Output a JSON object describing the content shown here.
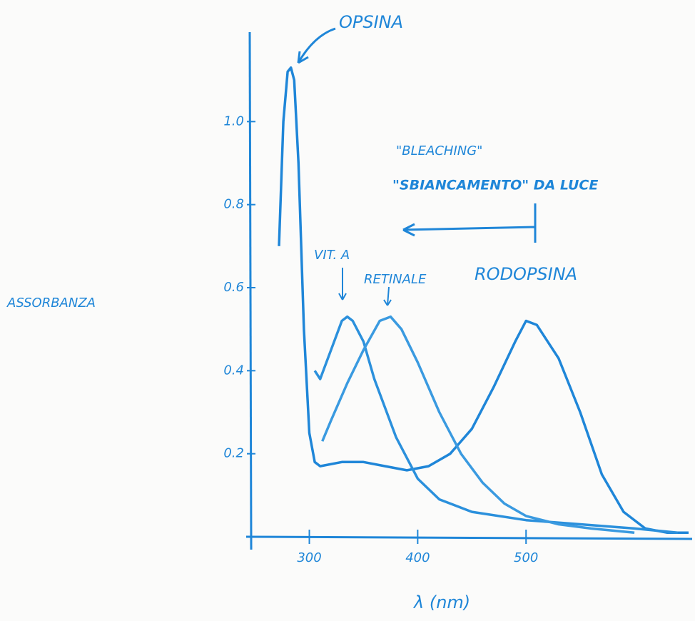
{
  "chart_data": {
    "type": "line",
    "y_label": "ASSORBANZA",
    "x_label": "λ (nm)",
    "annotations": [
      "OPSINA",
      "\"BLEACHING\"",
      "\"SBIANCAMENTO\" DA LUCE"
    ],
    "xlim": [
      245,
      650
    ],
    "ylim": [
      0,
      1.2
    ],
    "xticks": [
      300,
      400,
      500
    ],
    "yticks": [
      0.2,
      0.4,
      0.6,
      0.8,
      {
        "value": 1,
        "label": "1.0"
      }
    ],
    "grid": false,
    "series": [
      {
        "name": "RODOPSINA",
        "color": "#1f86d8",
        "x": [
          272,
          276,
          280,
          283,
          286,
          290,
          295,
          300,
          305,
          310,
          330,
          350,
          370,
          390,
          410,
          430,
          450,
          470,
          490,
          500,
          510,
          530,
          550,
          570,
          590,
          610,
          630,
          650
        ],
        "values": [
          0.7,
          1.0,
          1.12,
          1.13,
          1.1,
          0.9,
          0.5,
          0.25,
          0.18,
          0.17,
          0.18,
          0.18,
          0.17,
          0.16,
          0.17,
          0.2,
          0.26,
          0.36,
          0.47,
          0.52,
          0.51,
          0.43,
          0.3,
          0.15,
          0.06,
          0.02,
          0.01,
          0.01
        ]
      },
      {
        "name": "VIT. A",
        "color": "#2b90dc",
        "x": [
          305,
          310,
          320,
          330,
          335,
          340,
          350,
          360,
          380,
          400,
          420,
          450,
          500,
          550,
          600,
          640
        ],
        "values": [
          0.4,
          0.38,
          0.45,
          0.52,
          0.53,
          0.52,
          0.47,
          0.38,
          0.24,
          0.14,
          0.09,
          0.06,
          0.04,
          0.03,
          0.02,
          0.01
        ]
      },
      {
        "name": "RETINALE",
        "color": "#3a9ae0",
        "x": [
          312,
          320,
          335,
          350,
          365,
          375,
          385,
          400,
          420,
          440,
          460,
          480,
          500,
          530,
          560,
          600
        ],
        "values": [
          0.23,
          0.28,
          0.37,
          0.45,
          0.52,
          0.53,
          0.5,
          0.42,
          0.3,
          0.2,
          0.13,
          0.08,
          0.05,
          0.03,
          0.02,
          0.01
        ]
      }
    ]
  }
}
